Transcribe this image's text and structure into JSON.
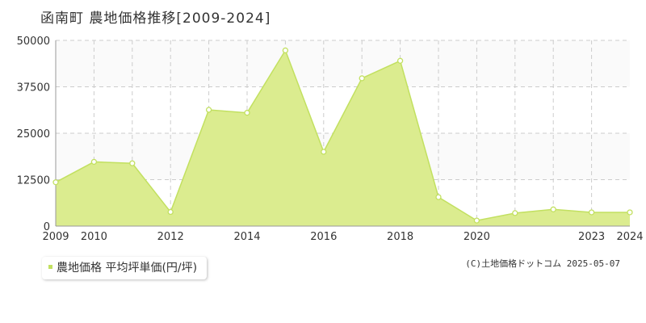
{
  "title": "函南町 農地価格推移[2009-2024]",
  "legend_label": "農地価格 平均坪単価(円/坪)",
  "copyright": "(C)土地価格ドットコム 2025-05-07",
  "colors": {
    "fill": "#dbec8f",
    "line": "#c2e060",
    "band": "#fafafa",
    "grid": "#cccccc",
    "legend_swatch": "#c2e060"
  },
  "chart_data": {
    "type": "area",
    "x": [
      2009,
      2010,
      2011,
      2012,
      2013,
      2014,
      2015,
      2016,
      2017,
      2018,
      2019,
      2020,
      2021,
      2022,
      2023,
      2024
    ],
    "x_tick_labels": [
      "2009",
      "2010",
      "2012",
      "2014",
      "2016",
      "2018",
      "2020",
      "2023",
      "2024"
    ],
    "x_tick_values": [
      2009,
      2010,
      2012,
      2014,
      2016,
      2018,
      2020,
      2023,
      2024
    ],
    "series": [
      {
        "name": "農地価格 平均坪単価(円/坪)",
        "values": [
          11800,
          17300,
          16900,
          3800,
          31300,
          30500,
          47300,
          20000,
          39800,
          44500,
          7800,
          1500,
          3500,
          4500,
          3700,
          3700
        ]
      }
    ],
    "y_ticks": [
      0,
      12500,
      25000,
      37500,
      50000
    ],
    "ylim": [
      0,
      50000
    ],
    "xlim": [
      2009,
      2024
    ],
    "grid": true
  }
}
